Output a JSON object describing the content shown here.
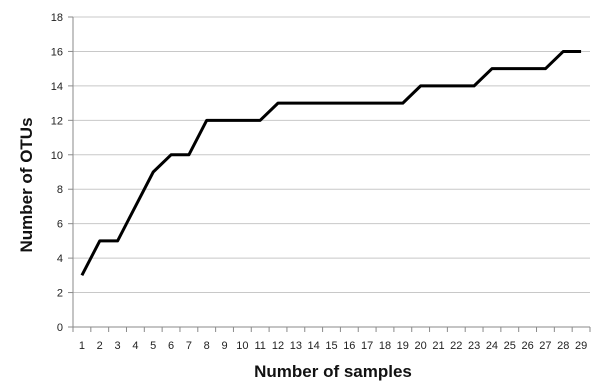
{
  "chart_data": {
    "type": "line",
    "title": "",
    "xlabel": "Number of samples",
    "ylabel": "Number of OTUs",
    "ylim": [
      0,
      18
    ],
    "y_ticks": [
      0,
      2,
      4,
      6,
      8,
      10,
      12,
      14,
      16,
      18
    ],
    "x_ticks": [
      1,
      2,
      3,
      4,
      5,
      6,
      7,
      8,
      9,
      10,
      11,
      12,
      13,
      14,
      15,
      16,
      17,
      18,
      19,
      20,
      21,
      22,
      23,
      24,
      25,
      26,
      27,
      28,
      29
    ],
    "grid": true,
    "legend": "none",
    "series": [
      {
        "color": "#000000",
        "x": [
          1,
          2,
          3,
          4,
          5,
          6,
          7,
          8,
          9,
          10,
          11,
          12,
          13,
          14,
          15,
          16,
          17,
          18,
          19,
          20,
          21,
          22,
          23,
          24,
          25,
          26,
          27,
          28,
          29
        ],
        "values": [
          3,
          5,
          5,
          7,
          9,
          10,
          10,
          12,
          12,
          12,
          12,
          13,
          13,
          13,
          13,
          13,
          13,
          13,
          13,
          14,
          14,
          14,
          14,
          15,
          15,
          15,
          15,
          16,
          16
        ]
      }
    ]
  }
}
